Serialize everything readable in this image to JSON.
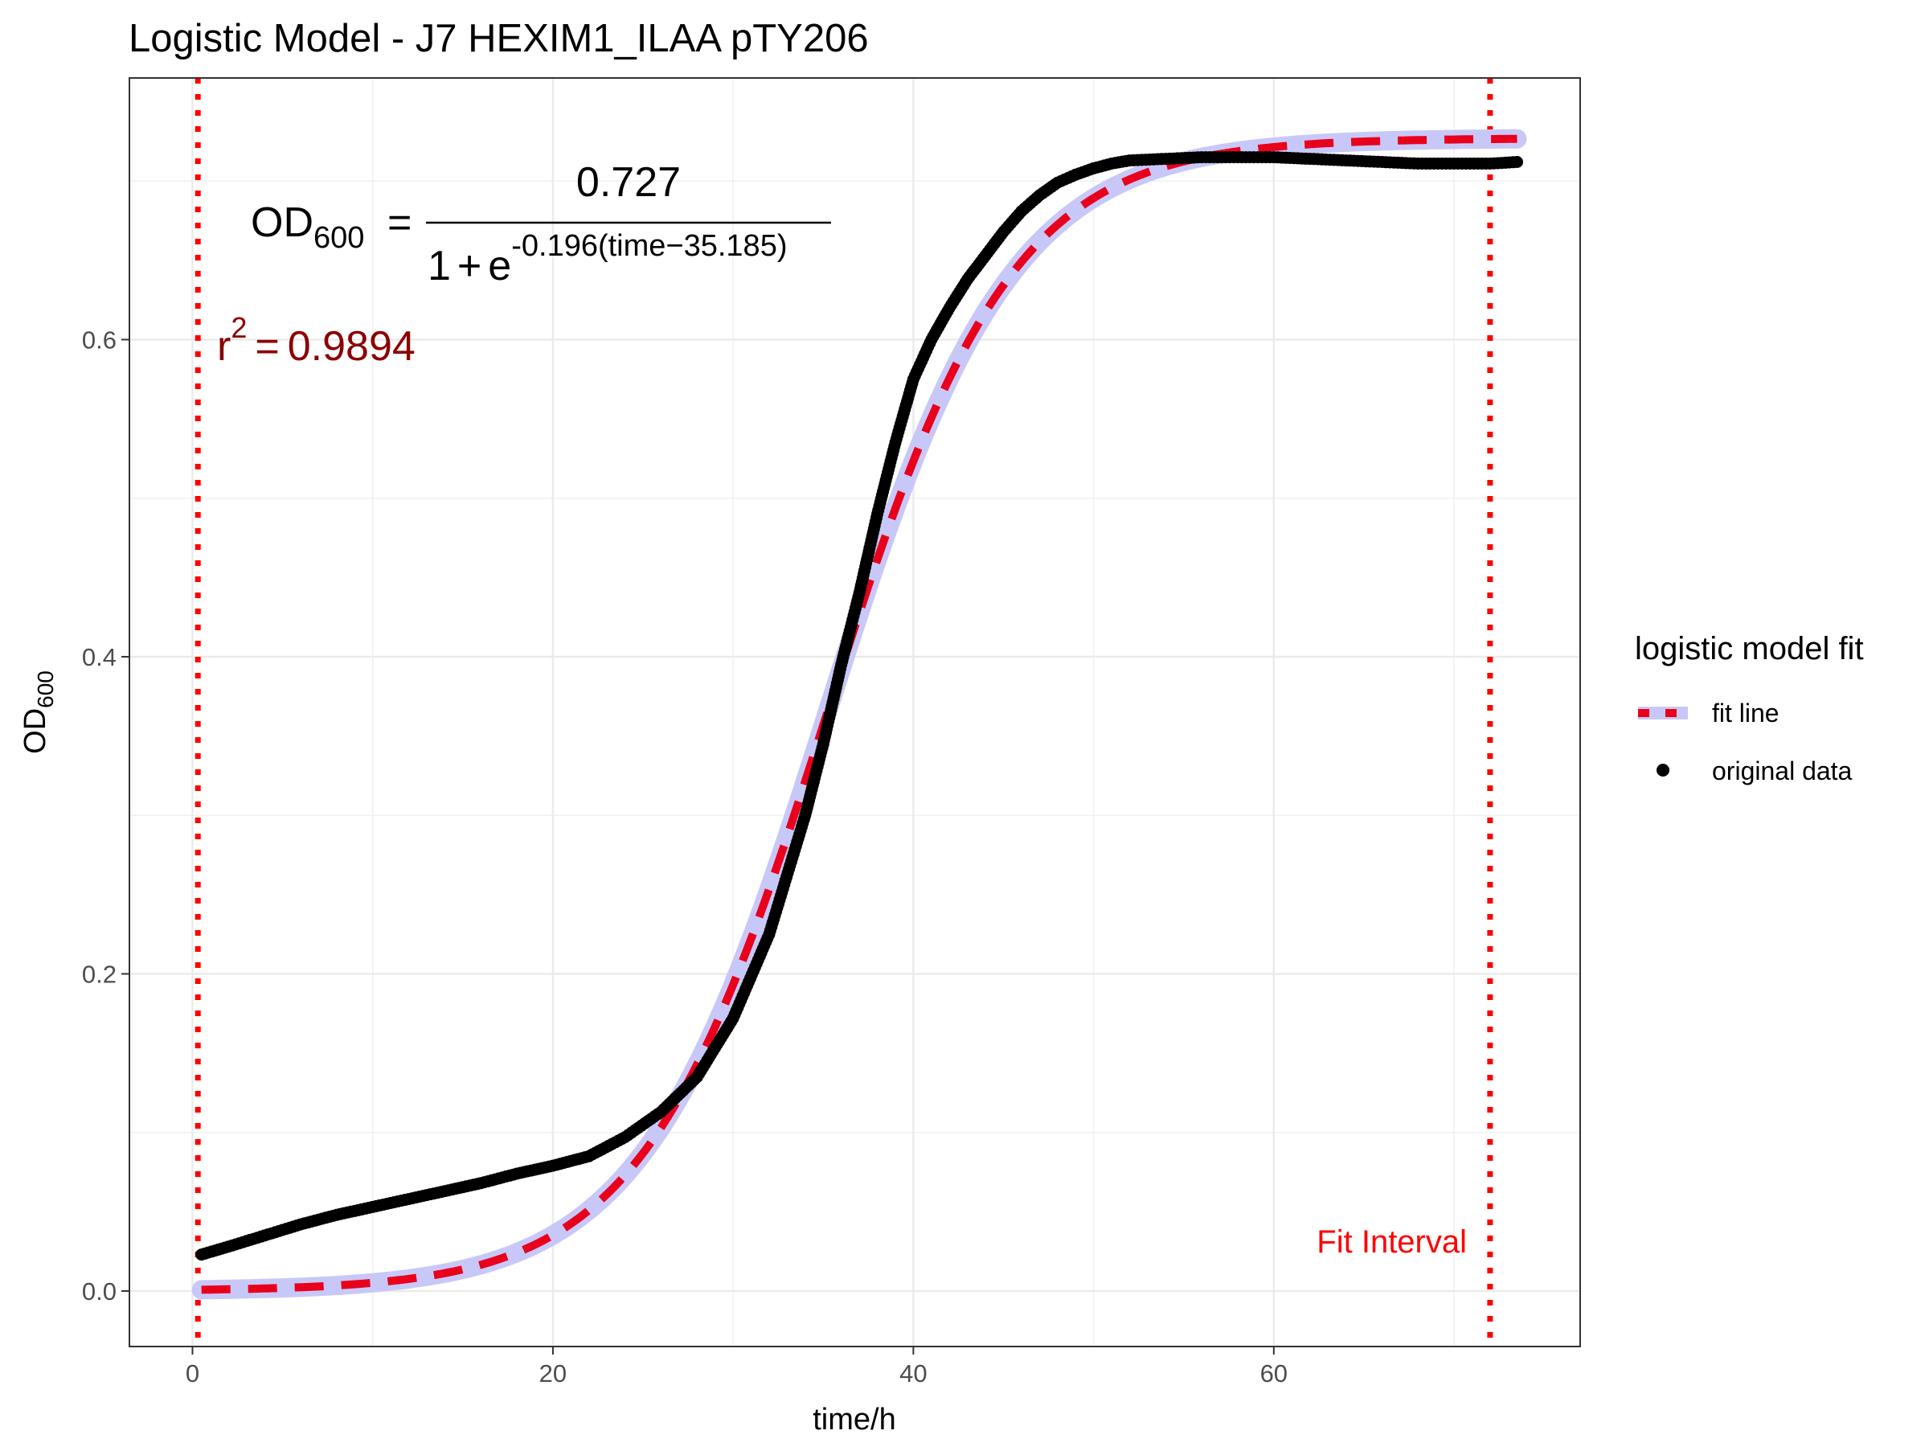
{
  "chart_data": {
    "type": "line",
    "title": "Logistic Model -  J7 HEXIM1_ILAA pTY206",
    "xlabel": "time/h",
    "ylabel": "OD",
    "ylabel_sub": "600",
    "xlim": [
      -3.5,
      77
    ],
    "ylim": [
      -0.035,
      0.765
    ],
    "x_ticks": [
      0,
      20,
      40,
      60
    ],
    "x_tick_labels": [
      "0",
      "20",
      "40",
      "60"
    ],
    "y_ticks": [
      0.0,
      0.2,
      0.4,
      0.6
    ],
    "y_tick_labels": [
      "0.0",
      "0.2",
      "0.4",
      "0.6"
    ],
    "grid": true,
    "equation": {
      "lhs": "OD",
      "lhs_sub": "600",
      "equals": "=",
      "numerator": "0.727",
      "denominator_one": "1",
      "plus": "+",
      "e": "e",
      "exponent": "-0.196(time−35.185)"
    },
    "r_squared": {
      "label": "r",
      "sup": "2",
      "equals": "=",
      "value": "0.9894"
    },
    "fit_params": {
      "K": 0.727,
      "r": 0.196,
      "t0": 35.185
    },
    "fit_range": [
      0.5,
      73.5
    ],
    "fit_interval": {
      "label": "Fit Interval",
      "start": 0.3,
      "end": 72.0,
      "color": "#ff0000"
    },
    "legend": {
      "title": "logistic model fit",
      "placement": "right",
      "items": [
        {
          "label": "fit line",
          "style": "dashed",
          "color": "#e8001c"
        },
        {
          "label": "original data",
          "style": "point",
          "color": "#000000"
        }
      ]
    },
    "band_color": "#c8c8f8",
    "series": [
      {
        "name": "original data",
        "style": "point",
        "color": "#000000",
        "points": [
          [
            0.5,
            0.023
          ],
          [
            2,
            0.028
          ],
          [
            4,
            0.035
          ],
          [
            6,
            0.042
          ],
          [
            8,
            0.048
          ],
          [
            10,
            0.053
          ],
          [
            12,
            0.058
          ],
          [
            14,
            0.063
          ],
          [
            16,
            0.068
          ],
          [
            18,
            0.074
          ],
          [
            20,
            0.079
          ],
          [
            22,
            0.085
          ],
          [
            24,
            0.097
          ],
          [
            26,
            0.113
          ],
          [
            28,
            0.135
          ],
          [
            30,
            0.172
          ],
          [
            32,
            0.225
          ],
          [
            34,
            0.3
          ],
          [
            35,
            0.345
          ],
          [
            36,
            0.395
          ],
          [
            37,
            0.44
          ],
          [
            38,
            0.49
          ],
          [
            39,
            0.535
          ],
          [
            40,
            0.575
          ],
          [
            41,
            0.6
          ],
          [
            42,
            0.62
          ],
          [
            43,
            0.638
          ],
          [
            44,
            0.653
          ],
          [
            45,
            0.668
          ],
          [
            46,
            0.681
          ],
          [
            47,
            0.691
          ],
          [
            48,
            0.699
          ],
          [
            49,
            0.704
          ],
          [
            50,
            0.708
          ],
          [
            51,
            0.711
          ],
          [
            52,
            0.713
          ],
          [
            54,
            0.714
          ],
          [
            56,
            0.715
          ],
          [
            58,
            0.715
          ],
          [
            60,
            0.715
          ],
          [
            62,
            0.714
          ],
          [
            64,
            0.713
          ],
          [
            66,
            0.712
          ],
          [
            68,
            0.711
          ],
          [
            70,
            0.711
          ],
          [
            72,
            0.711
          ],
          [
            73.5,
            0.712
          ]
        ]
      }
    ]
  }
}
